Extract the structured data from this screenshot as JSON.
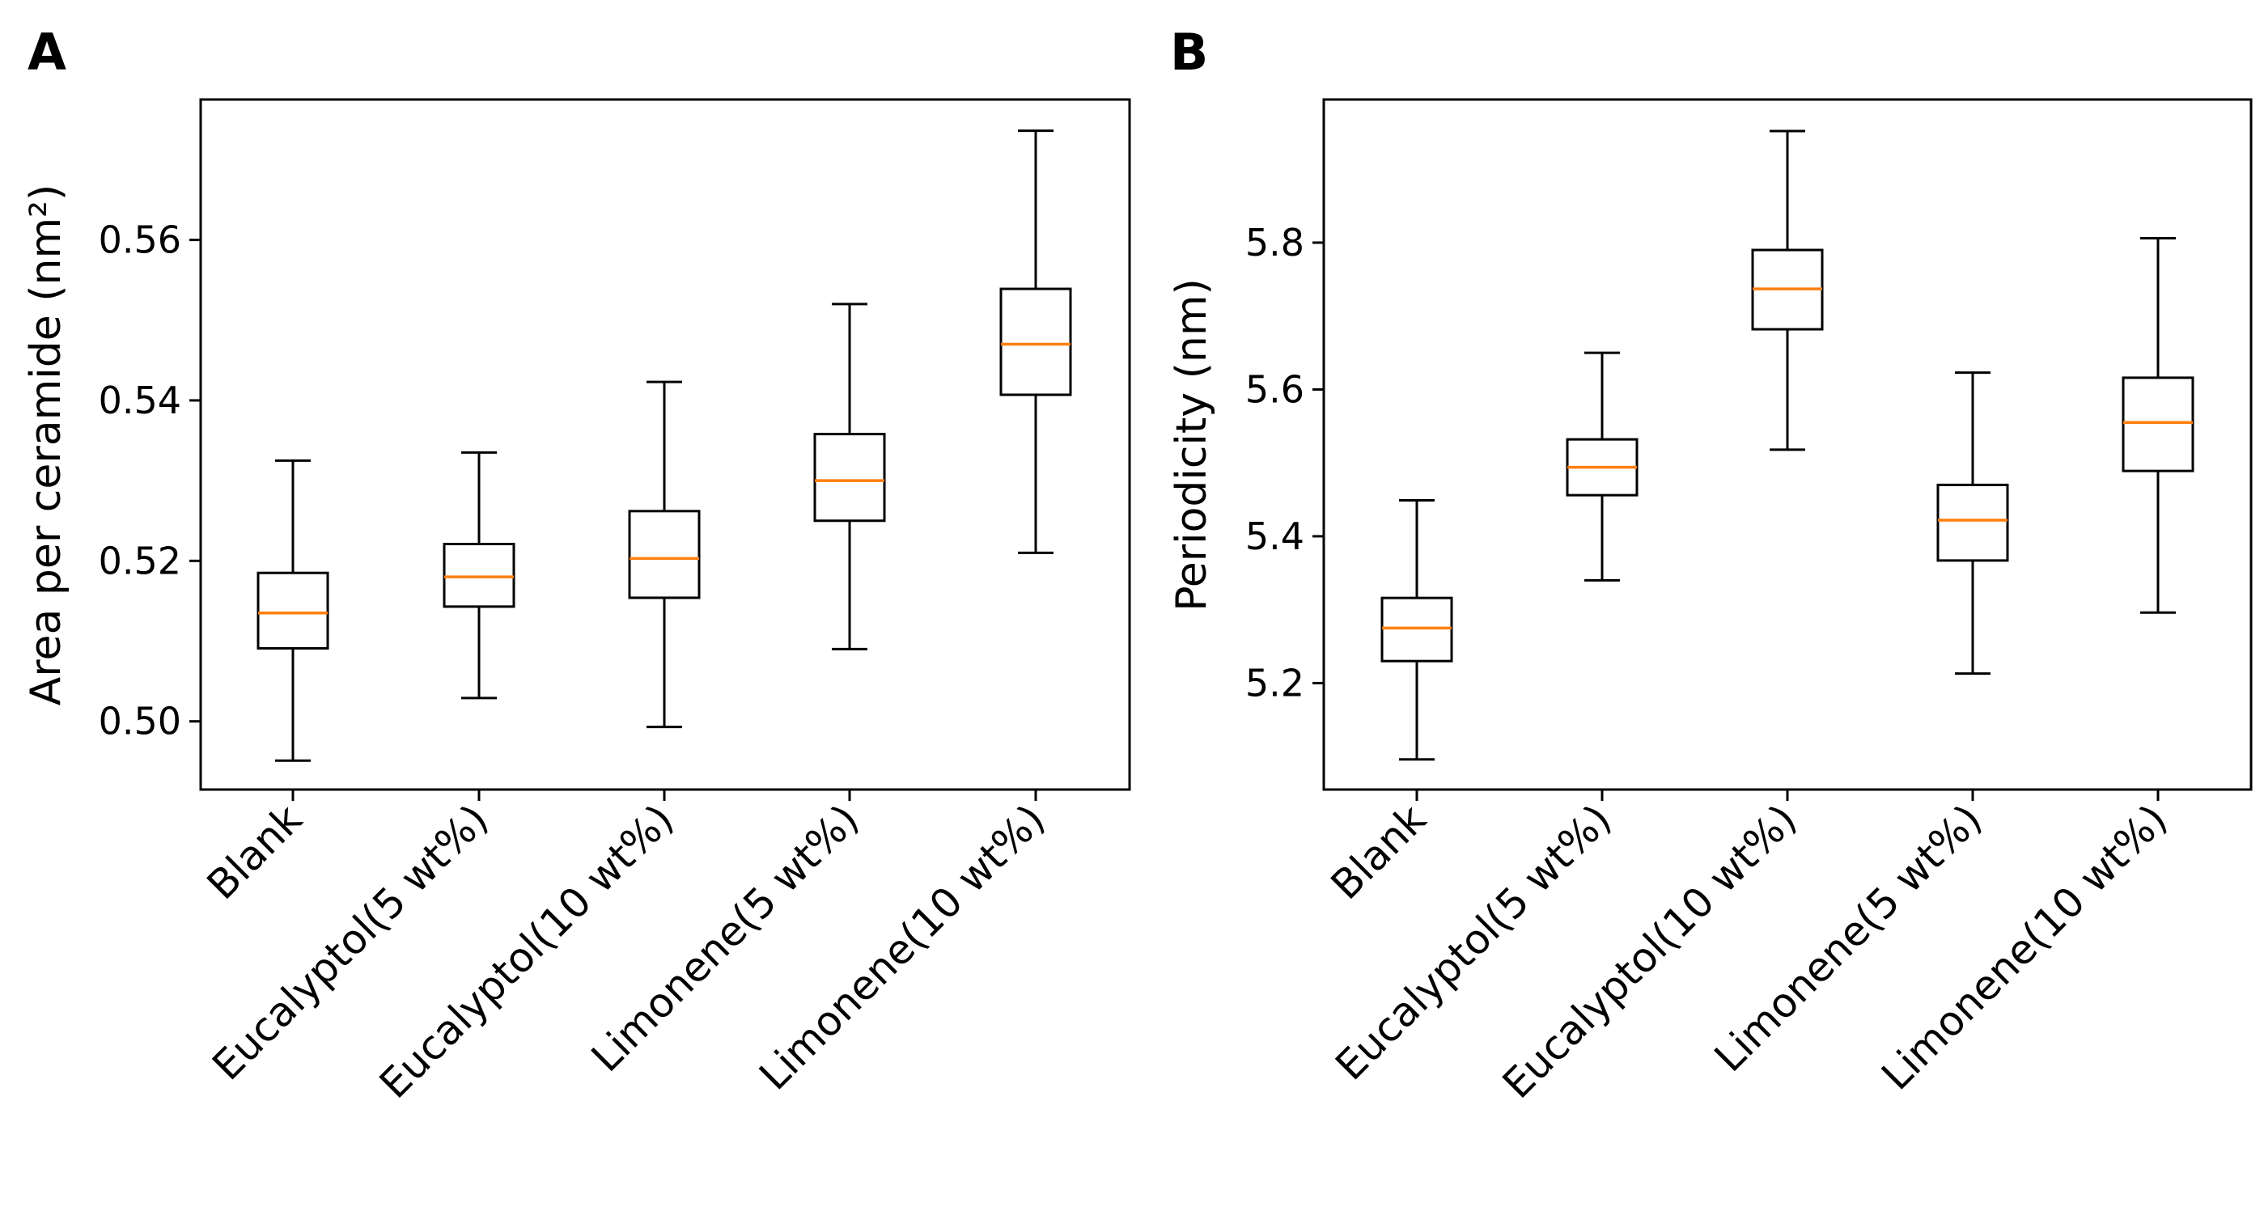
{
  "chart_data": [
    {
      "panel": "A",
      "type": "box",
      "ylabel": "Area per ceramide (nm²)",
      "ylim": [
        0.4915,
        0.5775
      ],
      "yticks": [
        "0.50",
        "0.52",
        "0.54",
        "0.56"
      ],
      "ytick_values": [
        0.5,
        0.52,
        0.54,
        0.56
      ],
      "categories": [
        "Blank",
        "Eucalyptol(5 wt%)",
        "Eucalyptol(10 wt%)",
        "Limonene(5 wt%)",
        "Limonene(10 wt%)"
      ],
      "boxes": [
        {
          "whislo": 0.4951,
          "q1": 0.5091,
          "med": 0.5135,
          "q3": 0.5185,
          "whishi": 0.5325
        },
        {
          "whislo": 0.5029,
          "q1": 0.5143,
          "med": 0.518,
          "q3": 0.5221,
          "whishi": 0.5335
        },
        {
          "whislo": 0.4993,
          "q1": 0.5154,
          "med": 0.5203,
          "q3": 0.5262,
          "whishi": 0.5423
        },
        {
          "whislo": 0.509,
          "q1": 0.525,
          "med": 0.53,
          "q3": 0.5358,
          "whishi": 0.552
        },
        {
          "whislo": 0.521,
          "q1": 0.5407,
          "med": 0.547,
          "q3": 0.5539,
          "whishi": 0.5736
        }
      ]
    },
    {
      "panel": "B",
      "type": "box",
      "ylabel": "Periodicity (nm)",
      "ylim": [
        5.055,
        5.995
      ],
      "yticks": [
        "5.2",
        "5.4",
        "5.6",
        "5.8"
      ],
      "ytick_values": [
        5.2,
        5.4,
        5.6,
        5.8
      ],
      "categories": [
        "Blank",
        "Eucalyptol(5 wt%)",
        "Eucalyptol(10 wt%)",
        "Limonene(5 wt%)",
        "Limonene(10 wt%)"
      ],
      "boxes": [
        {
          "whislo": 5.096,
          "q1": 5.23,
          "med": 5.275,
          "q3": 5.316,
          "whishi": 5.449
        },
        {
          "whislo": 5.34,
          "q1": 5.456,
          "med": 5.494,
          "q3": 5.532,
          "whishi": 5.65
        },
        {
          "whislo": 5.518,
          "q1": 5.682,
          "med": 5.737,
          "q3": 5.79,
          "whishi": 5.952
        },
        {
          "whislo": 5.213,
          "q1": 5.367,
          "med": 5.422,
          "q3": 5.47,
          "whishi": 5.623
        },
        {
          "whislo": 5.296,
          "q1": 5.489,
          "med": 5.555,
          "q3": 5.616,
          "whishi": 5.806
        }
      ]
    }
  ],
  "colors": {
    "median": "#ff7f0e",
    "line": "#000000"
  }
}
